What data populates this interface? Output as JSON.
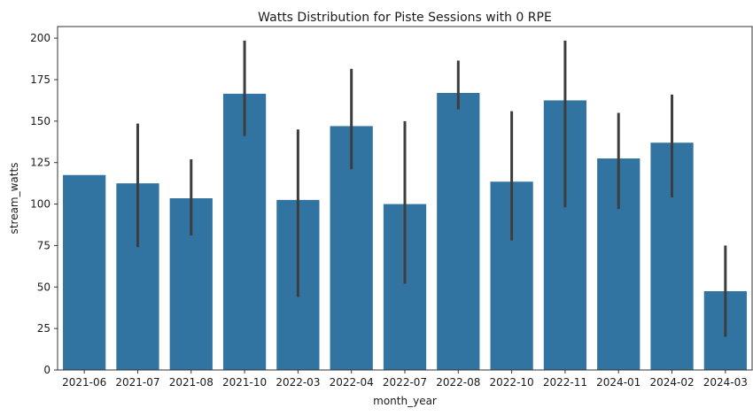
{
  "chart_data": {
    "type": "bar",
    "title": "Watts Distribution for Piste Sessions with 0 RPE",
    "xlabel": "month_year",
    "ylabel": "stream_watts",
    "ylim": [
      0,
      207
    ],
    "yticks": [
      0,
      25,
      50,
      75,
      100,
      125,
      150,
      175,
      200
    ],
    "categories": [
      "2021-06",
      "2021-07",
      "2021-08",
      "2021-10",
      "2022-03",
      "2022-04",
      "2022-07",
      "2022-08",
      "2022-10",
      "2022-11",
      "2024-01",
      "2024-02",
      "2024-03"
    ],
    "values": [
      117.5,
      112.5,
      103.5,
      166.5,
      102.5,
      147,
      100,
      167,
      113.5,
      162.5,
      127.5,
      137,
      47.5
    ],
    "error_low": [
      null,
      74,
      81,
      141,
      44,
      121,
      52,
      157,
      78,
      98,
      97,
      104,
      20
    ],
    "error_high": [
      null,
      148.5,
      127,
      198.5,
      145,
      181.5,
      150,
      186.5,
      156,
      198.5,
      155,
      166,
      75
    ],
    "bar_color": "#3274a1",
    "errorbar_color": "#3d3d3d",
    "grid": false
  }
}
